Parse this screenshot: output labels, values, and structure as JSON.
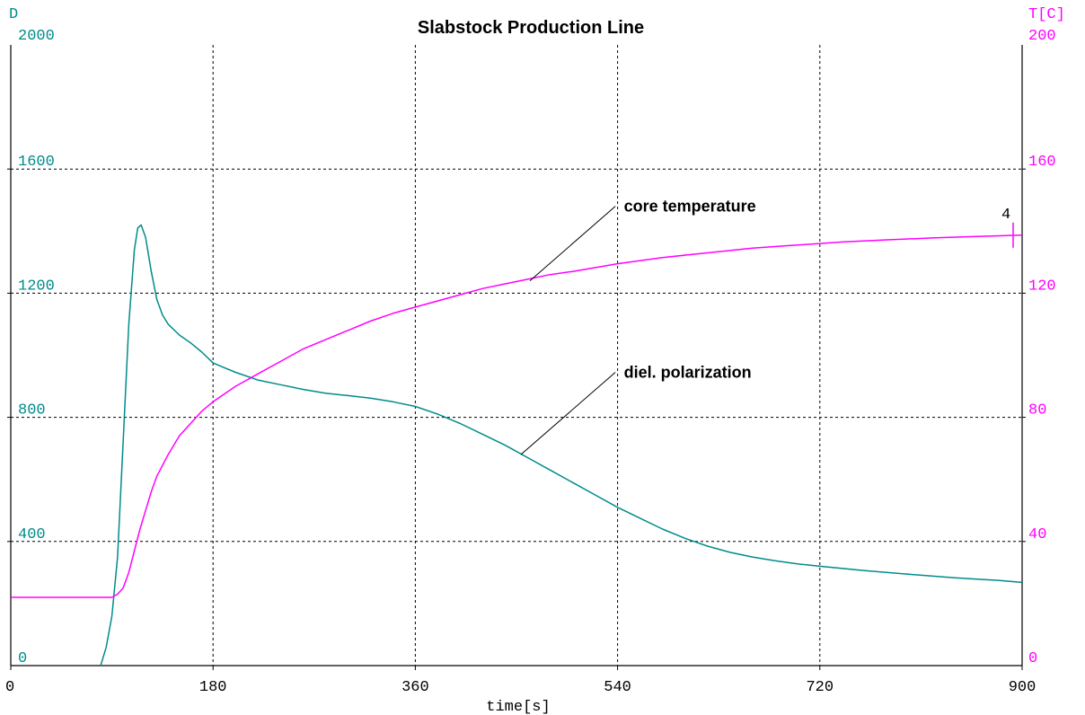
{
  "chart_data": {
    "type": "line",
    "title": "Slabstock Production Line",
    "xlabel": "time[s]",
    "xlim": [
      0,
      900
    ],
    "x_ticks": [
      "0",
      "180",
      "360",
      "540",
      "720",
      "900"
    ],
    "y_left": {
      "label": "D",
      "lim": [
        0,
        2000
      ],
      "ticks": [
        "0",
        "400",
        "800",
        "1200",
        "1600",
        "2000"
      ],
      "color": "#008B8B"
    },
    "y_right": {
      "label": "T[C]",
      "lim": [
        0,
        200
      ],
      "ticks": [
        "0",
        "40",
        "80",
        "120",
        "160",
        "200"
      ],
      "color": "#FF00FF"
    },
    "grid": true,
    "series": [
      {
        "axis": "left",
        "color": "#008B8B",
        "x": [
          80,
          85,
          90,
          95,
          100,
          105,
          110,
          113,
          116,
          120,
          125,
          130,
          135,
          140,
          150,
          160,
          170,
          180,
          200,
          220,
          240,
          260,
          280,
          300,
          320,
          340,
          360,
          380,
          400,
          420,
          440,
          460,
          480,
          500,
          520,
          540,
          560,
          580,
          600,
          620,
          640,
          660,
          680,
          700,
          720,
          760,
          800,
          840,
          880,
          900
        ],
        "values": [
          0,
          60,
          160,
          350,
          720,
          1100,
          1340,
          1410,
          1420,
          1380,
          1270,
          1180,
          1130,
          1100,
          1065,
          1040,
          1010,
          975,
          945,
          920,
          905,
          890,
          878,
          870,
          862,
          850,
          835,
          810,
          780,
          745,
          710,
          670,
          630,
          590,
          550,
          510,
          475,
          440,
          410,
          385,
          365,
          350,
          338,
          328,
          320,
          306,
          294,
          283,
          274,
          268
        ]
      },
      {
        "axis": "right",
        "color": "#FF00FF",
        "x": [
          0,
          80,
          90,
          95,
          100,
          105,
          110,
          115,
          120,
          125,
          130,
          140,
          150,
          160,
          170,
          180,
          200,
          220,
          240,
          260,
          280,
          300,
          320,
          340,
          360,
          380,
          400,
          420,
          440,
          460,
          480,
          500,
          540,
          580,
          620,
          660,
          700,
          740,
          780,
          820,
          860,
          900
        ],
        "values": [
          22,
          22,
          22,
          23,
          25,
          30,
          37,
          44,
          50,
          56,
          61,
          68,
          74,
          78,
          82,
          85,
          90,
          94,
          98,
          102,
          105,
          108,
          111,
          113.5,
          115.5,
          117.5,
          119.5,
          121.5,
          123,
          124.5,
          126,
          127,
          129.5,
          131.5,
          133,
          134.5,
          135.5,
          136.5,
          137.2,
          137.8,
          138.3,
          138.7
        ]
      }
    ],
    "annotations": [
      {
        "text": "core temperature",
        "text_at": [
          540,
          1480
        ],
        "leader_from": [
          538,
          1480
        ],
        "leader_to": [
          462,
          1240
        ]
      },
      {
        "text": "diel. polarization",
        "text_at": [
          540,
          945
        ],
        "leader_from": [
          538,
          945
        ],
        "leader_to": [
          454,
          680
        ]
      }
    ],
    "marker": {
      "label": "4",
      "x": 892,
      "y_right": 138.7
    }
  }
}
